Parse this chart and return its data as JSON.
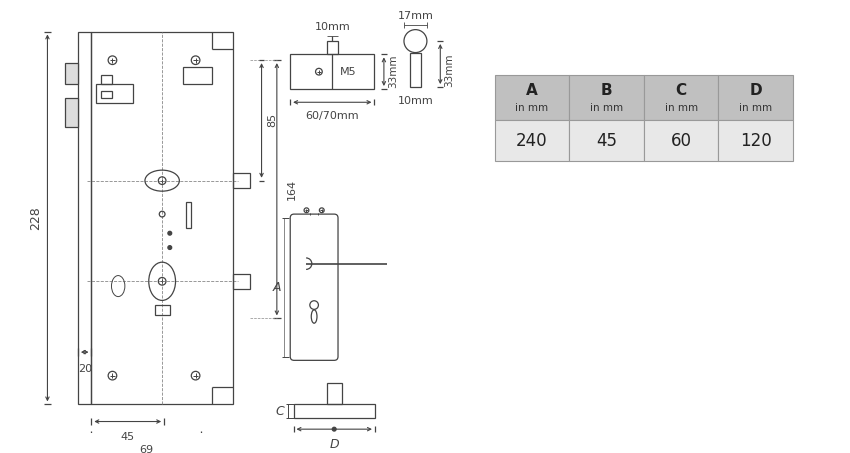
{
  "bg_color": "#ffffff",
  "lc": "#444444",
  "dc": "#888888",
  "table_header_bg": "#c0c0c0",
  "table_row_bg": "#e8e8e8",
  "table_border": "#999999",
  "table_cols": [
    "A",
    "B",
    "C",
    "D"
  ],
  "table_units": [
    "in mm",
    "in mm",
    "in mm",
    "in mm"
  ],
  "table_values": [
    "240",
    "45",
    "60",
    "120"
  ],
  "dim_228": "228",
  "dim_164": "164",
  "dim_85": "85",
  "dim_20": "20",
  "dim_45": "45",
  "dim_69": "69",
  "dim_10mm_top": "10mm",
  "dim_33mm": "33mm",
  "dim_6070mm": "60/70mm",
  "dim_17mm": "17mm",
  "dim_10mm_b": "10mm",
  "dim_33mm_b": "33mm",
  "dim_M5": "M5",
  "label_A": "A",
  "label_C": "C",
  "label_D": "D"
}
